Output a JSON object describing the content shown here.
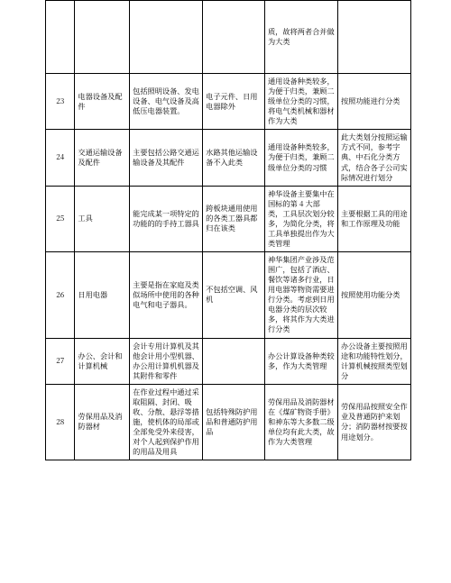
{
  "colors": {
    "border": "#000000",
    "text": "#000000",
    "background": "#ffffff"
  },
  "typography": {
    "font_family": "SimSun",
    "font_size_pt": 8.2,
    "line_height": 1.35
  },
  "table": {
    "type": "table",
    "columns": [
      {
        "key": "no",
        "width_pct": 8,
        "align": "center"
      },
      {
        "key": "name",
        "width_pct": 15,
        "align": "left"
      },
      {
        "key": "desc",
        "width_pct": 20,
        "align": "left"
      },
      {
        "key": "excl",
        "width_pct": 17,
        "align": "left"
      },
      {
        "key": "note",
        "width_pct": 20,
        "align": "left"
      },
      {
        "key": "rule",
        "width_pct": 20,
        "align": "left"
      }
    ],
    "rows": [
      {
        "no": "",
        "name": "",
        "desc": "",
        "excl": "",
        "note": "质，故将两者合并做为大类",
        "rule": ""
      },
      {
        "no": "23",
        "name": "电器设备及配件",
        "desc": "包括照明设备、发电设备、电气设备及高低压电器装置。",
        "excl": "电子元件、日用电器除外",
        "note": "通用设备种类较多，为便于归类，兼顾二级单位分类的习惯，将电气类机械和器材作为大类",
        "rule": "按照功能进行分类"
      },
      {
        "no": "24",
        "name": "交通运输设备及配件",
        "desc": "主要包括公路交通运输设备及其配件",
        "excl": "水路其他运输设备不入此类",
        "note": "通用设备种类较多，为便于归类，兼顾二级单位分类的习惯",
        "rule": "此大类划分按照运输方式不同，参考字典、中石化分类方式，结合各子公司实际情况进行划分"
      },
      {
        "no": "25",
        "name": "工具",
        "desc": "能完成某一项特定的功能的的手持工器具",
        "excl": "跨板块通用使用的各类工器具都归在该类",
        "note": "神华设备主要集中在国标的第 4 大部类，工具层次划分较多，为简化分类，将工具单独提出作为大类管理",
        "rule": "主要根据工具的用途和工作原理及功能"
      },
      {
        "no": "26",
        "name": "日用电器",
        "desc": "主要是指在家庭及类似场所中使用的各种电气和电子器具。",
        "excl": "不包括空调、风机",
        "note": "神华集团产业涉及范围广，包括了酒店、餐饮等诸多行业，日用电器等物资需要进行分类。考虑到日用电器分类的层次较多，将其作为大类进行分类",
        "rule": "按照使用功能分类"
      },
      {
        "no": "27",
        "name": "办公、会计和计算机械",
        "desc": "会计专用计算机及其他会计用小型机器、办公用计算机机器及其附件和零件",
        "excl": "",
        "note": "办公计算设备种类较多，作为大类管理",
        "rule": "办公设备主要按照用途和功能特性划分，计算机械按照类型划分"
      },
      {
        "no": "28",
        "name": "劳保用品及消防器材",
        "desc": "在作业过程中通过采取阻隔、封闭、吸收、分散、悬浮等措施，使机体的局部或全部免受外来侵害，对个人起到保护作用的用品及用具",
        "excl": "包括特殊防护用品和普通防护用品",
        "note": "劳保用品及消防器材在《煤矿物资手册》和神东等大多数二级单位均有此大类，故作为大类管理",
        "rule": "劳保用品按照安全作业及普通防护来划分；消防器材按要按用途划分。"
      }
    ]
  }
}
